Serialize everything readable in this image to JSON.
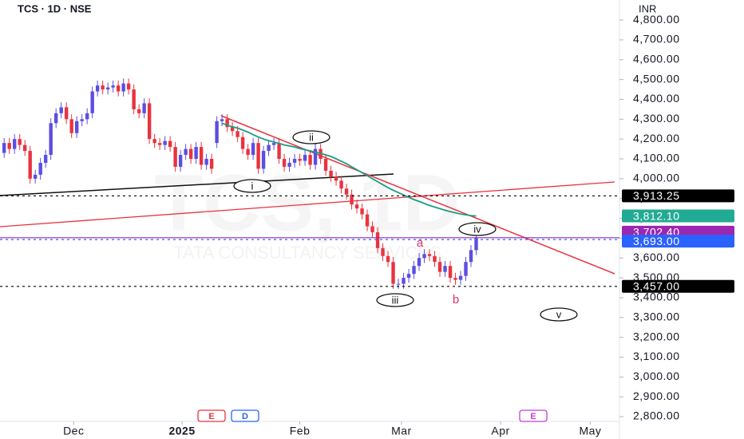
{
  "chart_data": {
    "type": "candlestick",
    "title": "TCS · 1D · NSE",
    "currency": "INR",
    "watermark": [
      "TCS, 1D",
      "TATA CONSULTANCY SERVICES"
    ],
    "up_color": "#5b4ee0",
    "down_color": "#e8333f",
    "xlim": [
      -0.8,
      117.7
    ],
    "xticks": [
      {
        "value": 13.4,
        "label": "Dec"
      },
      {
        "value": 34.3,
        "label": "2025"
      },
      {
        "value": 57,
        "label": "Feb"
      },
      {
        "value": 76.6,
        "label": "Mar"
      },
      {
        "value": 95.7,
        "label": "Apr"
      },
      {
        "value": 113,
        "label": "May"
      }
    ],
    "ylim": [
      2776,
      4901
    ],
    "yticks": [
      {
        "value": 2800,
        "label": "2,800.00"
      },
      {
        "value": 2900,
        "label": "2,900.00"
      },
      {
        "value": 3000,
        "label": "3,000.00"
      },
      {
        "value": 3100,
        "label": "3,100.00"
      },
      {
        "value": 3200,
        "label": "3,200.00"
      },
      {
        "value": 3300,
        "label": "3,300.00"
      },
      {
        "value": 3400,
        "label": "3,400.00"
      },
      {
        "value": 3500,
        "label": "3,500.00"
      },
      {
        "value": 3600,
        "label": "3,600.00"
      },
      {
        "value": 3700,
        "label": "3,700.00"
      },
      {
        "value": 3800,
        "label": "3,800.00"
      },
      {
        "value": 3900,
        "label": "3,900.00"
      },
      {
        "value": 4000,
        "label": "4,000.00"
      },
      {
        "value": 4100,
        "label": "4,100.00"
      },
      {
        "value": 4200,
        "label": "4,200.00"
      },
      {
        "value": 4300,
        "label": "4,300.00"
      },
      {
        "value": 4400,
        "label": "4,400.00"
      },
      {
        "value": 4500,
        "label": "4,500.00"
      },
      {
        "value": 4600,
        "label": "4,600.00"
      },
      {
        "value": 4700,
        "label": "4,700.00"
      },
      {
        "value": 4800,
        "label": "4,800.00"
      }
    ],
    "open": [
      4130,
      4180,
      4150,
      4200,
      4170,
      4140,
      4000,
      4020,
      4080,
      4120,
      4280,
      4330,
      4360,
      4300,
      4230,
      4290,
      4300,
      4330,
      4440,
      4470,
      4450,
      4460,
      4470,
      4440,
      4480,
      4450,
      4350,
      4330,
      4380,
      4200,
      4180,
      4170,
      4190,
      4160,
      4060,
      4120,
      4150,
      4100,
      4160,
      4070,
      4100,
      4180,
      4290,
      4300,
      4260,
      4240,
      4210,
      4150,
      4120,
      4180,
      4050,
      4140,
      4170,
      4180,
      4100,
      4060,
      4080,
      4100,
      4090,
      4120,
      4070,
      4150,
      4100,
      4040,
      4010,
      3990,
      3950,
      3920,
      3870,
      3850,
      3820,
      3760,
      3730,
      3650,
      3610,
      3580,
      3470,
      3470,
      3500,
      3520,
      3560,
      3600,
      3620,
      3610,
      3580,
      3530,
      3560,
      3500,
      3490,
      3510,
      3580,
      3640
    ],
    "high": [
      4205,
      4205,
      4225,
      4225,
      4195,
      4165,
      4045,
      4105,
      4145,
      4305,
      4355,
      4385,
      4385,
      4325,
      4315,
      4325,
      4355,
      4465,
      4495,
      4495,
      4485,
      4495,
      4495,
      4505,
      4505,
      4475,
      4375,
      4405,
      4405,
      4225,
      4205,
      4215,
      4215,
      4185,
      4145,
      4175,
      4175,
      4185,
      4185,
      4125,
      4125,
      4315,
      4325,
      4325,
      4285,
      4265,
      4235,
      4175,
      4205,
      4205,
      4165,
      4195,
      4205,
      4205,
      4125,
      4105,
      4125,
      4125,
      4145,
      4145,
      4175,
      4175,
      4125,
      4065,
      4035,
      4015,
      3975,
      3945,
      3895,
      3875,
      3845,
      3785,
      3755,
      3675,
      3635,
      3605,
      3495,
      3525,
      3545,
      3585,
      3625,
      3645,
      3645,
      3635,
      3605,
      3585,
      3585,
      3525,
      3535,
      3605,
      3665,
      3730
    ],
    "low": [
      4105,
      4125,
      4125,
      4145,
      4115,
      3975,
      3975,
      3995,
      4055,
      4095,
      4255,
      4305,
      4275,
      4205,
      4205,
      4265,
      4275,
      4305,
      4415,
      4425,
      4425,
      4435,
      4415,
      4415,
      4425,
      4325,
      4305,
      4305,
      4175,
      4155,
      4145,
      4145,
      4135,
      4035,
      4035,
      4095,
      4075,
      4075,
      4045,
      4045,
      4025,
      4155,
      4265,
      4235,
      4215,
      4185,
      4125,
      4095,
      4095,
      4025,
      4025,
      4115,
      4145,
      4075,
      4035,
      4035,
      4055,
      4065,
      4065,
      4045,
      4045,
      4075,
      4015,
      3985,
      3965,
      3925,
      3895,
      3845,
      3825,
      3795,
      3735,
      3705,
      3625,
      3585,
      3555,
      3445,
      3445,
      3445,
      3475,
      3495,
      3535,
      3575,
      3585,
      3555,
      3505,
      3505,
      3475,
      3465,
      3465,
      3485,
      3555,
      3615
    ],
    "close": [
      4180,
      4150,
      4200,
      4170,
      4140,
      4000,
      4020,
      4080,
      4120,
      4280,
      4330,
      4360,
      4300,
      4230,
      4290,
      4300,
      4330,
      4440,
      4470,
      4450,
      4460,
      4470,
      4440,
      4480,
      4450,
      4350,
      4330,
      4380,
      4200,
      4180,
      4170,
      4190,
      4160,
      4060,
      4120,
      4150,
      4100,
      4160,
      4070,
      4100,
      4050,
      4290,
      4300,
      4260,
      4240,
      4210,
      4150,
      4120,
      4180,
      4050,
      4140,
      4170,
      4180,
      4100,
      4060,
      4080,
      4100,
      4090,
      4120,
      4070,
      4150,
      4100,
      4040,
      4010,
      3990,
      3950,
      3920,
      3870,
      3850,
      3820,
      3760,
      3730,
      3650,
      3610,
      3580,
      3470,
      3470,
      3500,
      3520,
      3560,
      3600,
      3620,
      3610,
      3580,
      3530,
      3560,
      3500,
      3490,
      3510,
      3580,
      3640,
      3702.4
    ],
    "ma": {
      "color": "#1a9e82",
      "values": [
        null,
        null,
        null,
        null,
        null,
        null,
        null,
        null,
        null,
        null,
        null,
        null,
        null,
        null,
        null,
        null,
        null,
        null,
        null,
        null,
        null,
        null,
        null,
        null,
        null,
        null,
        null,
        null,
        null,
        null,
        null,
        null,
        null,
        null,
        null,
        null,
        null,
        null,
        null,
        null,
        null,
        null,
        4280,
        4270,
        4262,
        4255,
        4245,
        4235,
        4222,
        4210,
        4200,
        4192,
        4185,
        4178,
        4170,
        4165,
        4160,
        4152,
        4146,
        4140,
        4134,
        4128,
        4120,
        4112,
        4100,
        4088,
        4075,
        4060,
        4045,
        4030,
        4015,
        4000,
        3985,
        3970,
        3955,
        3942,
        3930,
        3918,
        3906,
        3895,
        3885,
        3875,
        3865,
        3857,
        3849,
        3841,
        3834,
        3828,
        3822,
        3818,
        3814,
        3812.1
      ]
    },
    "levels": [
      {
        "value": 3913.25,
        "label": "3,913.25",
        "color": "#000000",
        "style": "dotted"
      },
      {
        "value": 3812.1,
        "label": "3,812.10",
        "color": "#22ab94",
        "style": "none"
      },
      {
        "value": 3702.4,
        "label": "3,702.40",
        "color": "#9c27b0",
        "style": "solid"
      },
      {
        "value": 3693,
        "label": "3,693.00",
        "color": "#2962ff",
        "style": "dotted"
      },
      {
        "value": 3457,
        "label": "3,457.00",
        "color": "#000000",
        "style": "dotted"
      }
    ],
    "waves": [
      "i",
      "ii",
      "iii",
      "iv",
      "v"
    ],
    "corrections": [
      "a",
      "b"
    ],
    "events": [
      "E",
      "D",
      "E"
    ]
  }
}
